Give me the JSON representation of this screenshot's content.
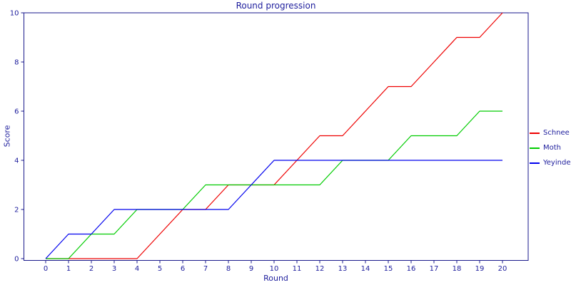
{
  "colors": {
    "text": "#1c1c9c",
    "frame": "#1a1a8c",
    "background": "#ffffff"
  },
  "chart_data": {
    "type": "line",
    "title": "Round progression",
    "xlabel": "Round",
    "ylabel": "Score",
    "xlim": [
      0,
      20
    ],
    "ylim": [
      0,
      10
    ],
    "grid": false,
    "legend_position": "right-outside",
    "x": [
      0,
      1,
      2,
      3,
      4,
      5,
      6,
      7,
      8,
      9,
      10,
      11,
      12,
      13,
      14,
      15,
      16,
      17,
      18,
      19,
      20
    ],
    "y_ticks": [
      0,
      2,
      4,
      6,
      8,
      10
    ],
    "series": [
      {
        "name": "Schnee",
        "color": "#ee0000",
        "values": [
          0,
          0,
          0,
          0,
          0,
          1,
          2,
          2,
          3,
          3,
          3,
          4,
          5,
          5,
          6,
          7,
          7,
          8,
          9,
          9,
          10
        ]
      },
      {
        "name": "Moth",
        "color": "#00cc00",
        "values": [
          0,
          0,
          1,
          1,
          2,
          2,
          2,
          3,
          3,
          3,
          3,
          3,
          3,
          4,
          4,
          4,
          5,
          5,
          5,
          6,
          6
        ]
      },
      {
        "name": "Yeyinde",
        "color": "#0000ee",
        "values": [
          0,
          1,
          1,
          2,
          2,
          2,
          2,
          2,
          2,
          3,
          4,
          4,
          4,
          4,
          4,
          4,
          4,
          4,
          4,
          4,
          4
        ]
      }
    ]
  }
}
